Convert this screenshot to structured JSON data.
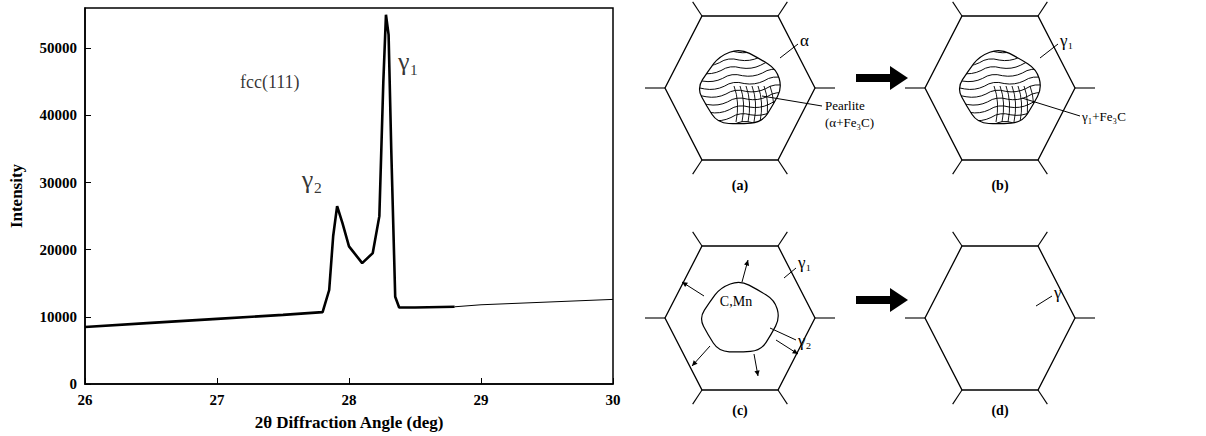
{
  "chart_data": {
    "type": "line",
    "x_label": "2θ Diffraction Angle (deg)",
    "y_label": "Intensity",
    "xlim": [
      26,
      30
    ],
    "xticks": [
      26,
      27,
      28,
      29,
      30
    ],
    "ylim": [
      0,
      56000
    ],
    "yticks": [
      0,
      10000,
      20000,
      30000,
      40000,
      50000
    ],
    "grid": false,
    "series": [
      {
        "color": "#000000",
        "line_style": "thick",
        "x": [
          26,
          26.5,
          27,
          27.5,
          27.8,
          27.85,
          27.88,
          27.91,
          27.95,
          28.0,
          28.1,
          28.18,
          28.23,
          28.26,
          28.28,
          28.3,
          28.32,
          28.35,
          28.38,
          28.5,
          28.8
        ],
        "values": [
          8500,
          9100,
          9700,
          10300,
          10700,
          14000,
          22000,
          26500,
          24000,
          20500,
          18000,
          19500,
          25000,
          45000,
          55000,
          52000,
          35000,
          13000,
          11400,
          11400,
          11500
        ]
      },
      {
        "color": "#000000",
        "line_style": "thin",
        "x": [
          28.8,
          29,
          29.5,
          30
        ],
        "values": [
          11500,
          11800,
          12200,
          12600
        ]
      }
    ],
    "annotations": [
      {
        "text": "fcc(111)",
        "x": 27.4,
        "y": 45000
      },
      {
        "text": "γ₁",
        "x": 28.45,
        "y": 48000
      },
      {
        "text": "γ₂",
        "x": 27.72,
        "y": 30500
      }
    ]
  },
  "diagram": {
    "panels": [
      {
        "label": "(a)",
        "matrix": "α",
        "colony": [
          "Pearlite",
          "(α+Fe₃C)"
        ]
      },
      {
        "label": "(b)",
        "matrix": "γ₁",
        "colony": [
          "γ₁+Fe₃C"
        ]
      },
      {
        "label": "(c)",
        "outer": "γ₁",
        "inner": "γ₂",
        "solute": "C,Mn"
      },
      {
        "label": "(d)",
        "matrix": "γ"
      }
    ]
  }
}
